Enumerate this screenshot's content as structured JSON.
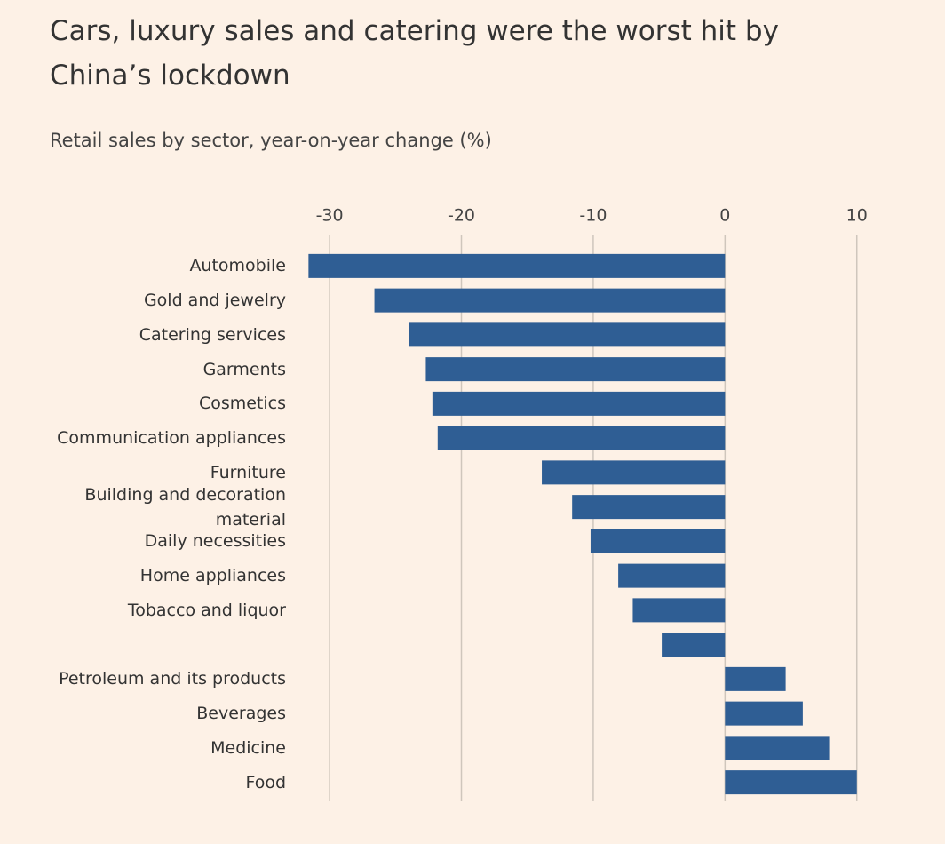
{
  "chart_data": {
    "type": "barh",
    "title": "Cars, luxury sales and catering were the worst hit by China’s lockdown",
    "subtitle": "Retail sales by sector, year-on-year change (%)",
    "categories": [
      "Automobile",
      "Gold and jewelry",
      "Catering services",
      "Garments",
      "Cosmetics",
      "Communication appliances",
      "Furniture",
      "Building and decoration material",
      "Daily necessities",
      "Home appliances",
      "Tobacco and liquor",
      null,
      "Petroleum and its products",
      "Beverages",
      "Medicine",
      "Food"
    ],
    "values": [
      -31.6,
      -26.6,
      -24.0,
      -22.7,
      -22.2,
      -21.8,
      -13.9,
      -11.6,
      -10.2,
      -8.1,
      -7.0,
      -4.8,
      4.6,
      5.9,
      7.9,
      10.0
    ],
    "color": "#2f5e94",
    "xlim": [
      -32.5,
      11.5
    ],
    "xticks": [
      -30,
      -20,
      -10,
      0,
      10
    ],
    "grid": true
  }
}
